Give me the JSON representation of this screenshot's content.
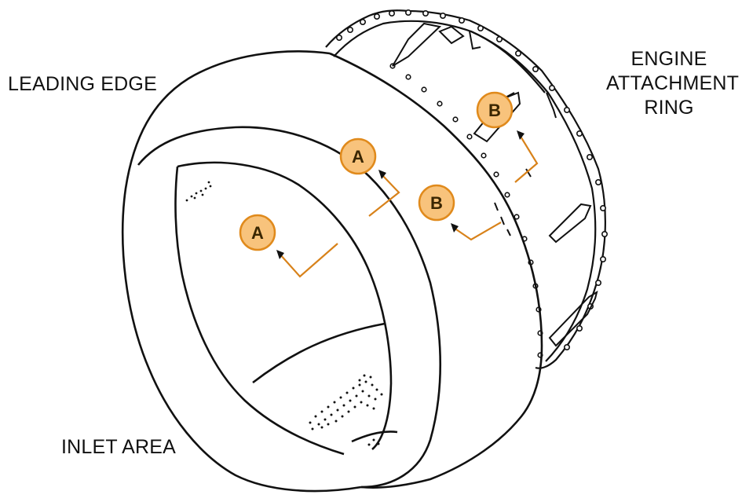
{
  "labels": {
    "leading_edge": "LEADING EDGE",
    "inlet_area": "INLET AREA",
    "engine_attachment_ring": [
      "ENGINE",
      "ATTACHMENT",
      "RING"
    ]
  },
  "callouts": [
    {
      "letter": "A"
    },
    {
      "letter": "A"
    },
    {
      "letter": "B"
    },
    {
      "letter": "B"
    }
  ],
  "colors": {
    "callout_fill": "#f8c37c",
    "callout_stroke": "#e08a1c",
    "leader_line": "#d8821a",
    "outline": "#111111"
  }
}
